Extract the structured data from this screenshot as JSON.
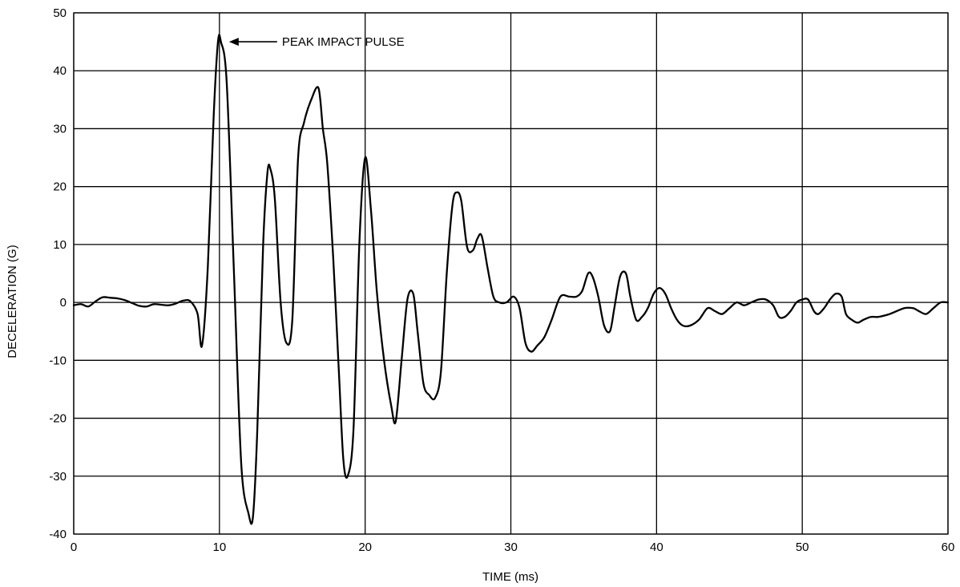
{
  "chart_data": {
    "type": "line",
    "title": "",
    "xlabel": "TIME (ms)",
    "ylabel": "DECELERATION (G)",
    "xlim": [
      0,
      60
    ],
    "ylim": [
      -40,
      50
    ],
    "x_ticks": [
      0,
      10,
      20,
      30,
      40,
      50,
      60
    ],
    "y_ticks": [
      -40,
      -30,
      -20,
      -10,
      0,
      10,
      20,
      30,
      40,
      50
    ],
    "grid": true,
    "legend": "none",
    "line_color": "#000000",
    "annotations": [
      {
        "text": "PEAK IMPACT PULSE",
        "x": 10.0,
        "y": 45.0,
        "arrow": true
      }
    ],
    "series": [
      {
        "x": [
          0,
          0.5,
          1.0,
          1.5,
          2.0,
          2.5,
          3.0,
          3.5,
          4.0,
          4.5,
          5.0,
          5.5,
          6.0,
          6.5,
          7.0,
          7.5,
          8.0,
          8.5,
          8.8,
          9.2,
          9.6,
          9.9,
          10.1,
          10.5,
          11.0,
          11.5,
          12.0,
          12.3,
          12.6,
          13.0,
          13.3,
          13.5,
          13.8,
          14.2,
          14.6,
          15.0,
          15.4,
          15.8,
          16.3,
          16.8,
          17.1,
          17.4,
          17.8,
          18.2,
          18.5,
          18.8,
          19.2,
          19.6,
          20.0,
          20.4,
          20.8,
          21.3,
          21.8,
          22.1,
          22.5,
          22.9,
          23.3,
          23.6,
          24.0,
          24.4,
          24.8,
          25.2,
          25.6,
          26.0,
          26.3,
          26.6,
          27.0,
          27.4,
          27.7,
          28.0,
          28.4,
          28.8,
          29.2,
          29.7,
          30.2,
          30.6,
          31.0,
          31.4,
          31.8,
          32.3,
          32.8,
          33.4,
          34.0,
          34.5,
          34.9,
          35.3,
          35.6,
          36.0,
          36.4,
          36.8,
          37.1,
          37.5,
          37.9,
          38.2,
          38.6,
          39.0,
          39.4,
          39.8,
          40.2,
          40.6,
          41.0,
          41.4,
          41.8,
          42.3,
          42.9,
          43.5,
          44.0,
          44.5,
          45.0,
          45.5,
          46.0,
          46.5,
          47.0,
          47.5,
          48.0,
          48.4,
          48.8,
          49.2,
          49.6,
          50.0,
          50.4,
          50.8,
          51.1,
          51.5,
          51.9,
          52.3,
          52.7,
          53.0,
          53.4,
          53.8,
          54.2,
          54.7,
          55.2,
          56.0,
          57.0,
          57.6,
          58.0,
          58.5,
          59.0,
          59.5,
          60.0
        ],
        "values": [
          -0.5,
          -0.3,
          -0.7,
          0.2,
          0.9,
          0.8,
          0.7,
          0.4,
          -0.1,
          -0.6,
          -0.7,
          -0.3,
          -0.4,
          -0.5,
          -0.2,
          0.3,
          0.2,
          -2.0,
          -7.5,
          6.0,
          32.0,
          45.0,
          45.0,
          38.0,
          5.0,
          -28.0,
          -36.5,
          -37.0,
          -22.0,
          10.0,
          22.5,
          23.0,
          18.0,
          0.0,
          -7.0,
          -3.0,
          25.0,
          31.0,
          35.0,
          37.0,
          30.0,
          24.0,
          8.0,
          -12.0,
          -27.0,
          -30.0,
          -22.0,
          10.0,
          25.0,
          16.0,
          2.0,
          -10.0,
          -18.0,
          -20.5,
          -10.0,
          0.5,
          1.5,
          -5.0,
          -14.0,
          -16.0,
          -16.5,
          -12.0,
          5.0,
          17.0,
          19.0,
          17.5,
          9.5,
          9.0,
          11.0,
          11.5,
          6.0,
          1.0,
          0.0,
          0.0,
          1.0,
          -1.0,
          -7.0,
          -8.5,
          -7.5,
          -6.0,
          -3.0,
          1.0,
          1.0,
          1.0,
          2.0,
          5.0,
          4.5,
          1.0,
          -4.0,
          -5.0,
          -1.0,
          4.5,
          5.0,
          1.0,
          -3.0,
          -2.5,
          -1.0,
          1.5,
          2.5,
          1.5,
          -1.0,
          -3.0,
          -4.0,
          -4.0,
          -3.0,
          -1.0,
          -1.5,
          -2.0,
          -1.0,
          0.0,
          -0.5,
          0.0,
          0.5,
          0.5,
          -0.5,
          -2.5,
          -2.5,
          -1.5,
          0.0,
          0.5,
          0.5,
          -1.5,
          -2.0,
          -1.0,
          0.5,
          1.5,
          1.0,
          -2.0,
          -3.0,
          -3.5,
          -3.0,
          -2.5,
          -2.5,
          -2.0,
          -1.0,
          -1.0,
          -1.5,
          -2.0,
          -1.0,
          0.0,
          0.0
        ]
      }
    ]
  }
}
